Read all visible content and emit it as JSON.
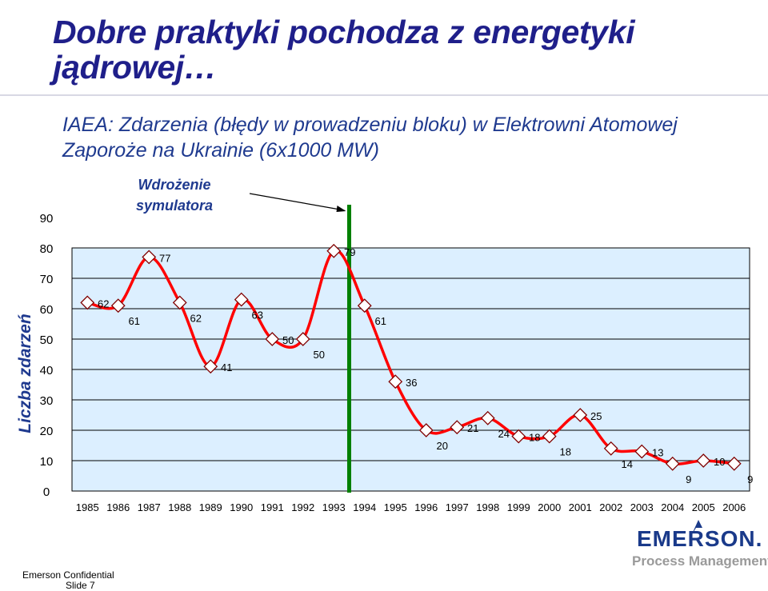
{
  "slide": {
    "title": "Dobre praktyki pochodza z energetyki jądrowej…",
    "subtitle_line1": "IAEA: Zdarzenia (błędy w prowadzeniu bloku) w Elektrowni Atomowej",
    "subtitle_line2": "Zaporoże na Ukrainie (6x1000 MW)",
    "footer_confidential": "Emerson Confidential",
    "footer_slide": "Slide 7",
    "logo_text": "EMERSON.",
    "logo_subtext": "Process Management"
  },
  "colors": {
    "title": "#1f1f8a",
    "plot_background": "#dcefff",
    "line": "#ff0000",
    "marker_fill": "#ffffff",
    "marker_stroke": "#800000",
    "marker_line": "#008000",
    "ylabel": "#1f3a8f"
  },
  "chart_data": {
    "type": "line",
    "title": "",
    "xlabel": "",
    "ylabel": "Liczba zdarzeń",
    "x": [
      "1985",
      "1986",
      "1987",
      "1988",
      "1989",
      "1990",
      "1991",
      "1992",
      "1993",
      "1994",
      "1995",
      "1996",
      "1997",
      "1998",
      "1999",
      "2000",
      "2001",
      "2002",
      "2003",
      "2004",
      "2005",
      "2006"
    ],
    "series": [
      {
        "values": [
          62,
          61,
          77,
          62,
          41,
          63,
          50,
          50,
          79,
          61,
          36,
          20,
          21,
          24,
          18,
          18,
          25,
          14,
          13,
          9,
          10,
          9
        ]
      }
    ],
    "yticks": [
      0,
      10,
      20,
      30,
      40,
      50,
      60,
      70,
      80,
      90
    ],
    "ylim": [
      0,
      90
    ],
    "grid": true,
    "legend": "none",
    "vertical_marker": {
      "between": [
        "1993",
        "1994"
      ],
      "label": "Wdrożenie symulatora"
    }
  }
}
